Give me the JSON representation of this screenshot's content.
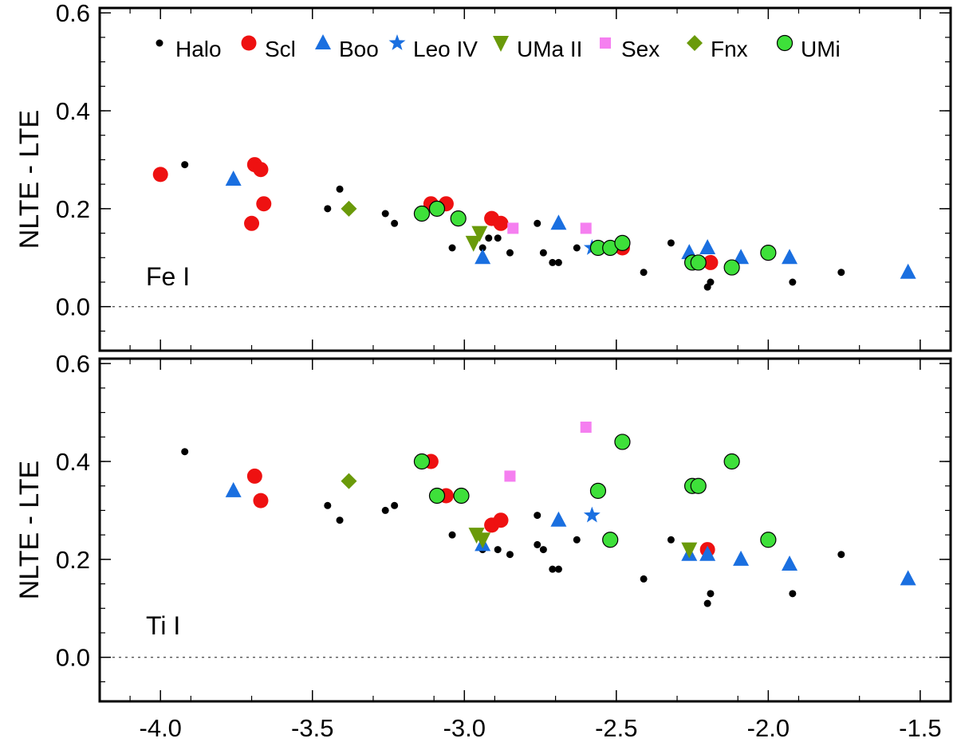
{
  "chart_data": [
    {
      "type": "scatter",
      "panel_label": "Fe I",
      "ylabel": "NLTE - LTE",
      "xlim": [
        -4.2,
        -1.4
      ],
      "ylim": [
        -0.09,
        0.61
      ],
      "yticks": [
        "0.0",
        "0.2",
        "0.4",
        "0.6"
      ],
      "reference_line": 0,
      "legend": [
        {
          "name": "Halo",
          "marker": "dot",
          "color": "#000000"
        },
        {
          "name": "Scl",
          "marker": "circle",
          "color": "#ee1111"
        },
        {
          "name": "Boo",
          "marker": "triangle",
          "color": "#1a6fe0"
        },
        {
          "name": "Leo IV",
          "marker": "star",
          "color": "#1a6fe0"
        },
        {
          "name": "UMa II",
          "marker": "triangle-down",
          "color": "#6a9a0a"
        },
        {
          "name": "Sex",
          "marker": "square",
          "color": "#f57ff0"
        },
        {
          "name": "Fnx",
          "marker": "diamond",
          "color": "#6a9a0a"
        },
        {
          "name": "UMi",
          "marker": "circle-outline",
          "color": "#3ee03a"
        }
      ],
      "series": [
        {
          "name": "Halo",
          "points": [
            [
              -3.92,
              0.29
            ],
            [
              -3.41,
              0.24
            ],
            [
              -3.45,
              0.2
            ],
            [
              -3.26,
              0.19
            ],
            [
              -3.23,
              0.17
            ],
            [
              -3.04,
              0.12
            ],
            [
              -2.94,
              0.12
            ],
            [
              -2.92,
              0.14
            ],
            [
              -2.89,
              0.14
            ],
            [
              -2.85,
              0.11
            ],
            [
              -2.76,
              0.17
            ],
            [
              -2.74,
              0.11
            ],
            [
              -2.71,
              0.09
            ],
            [
              -2.69,
              0.09
            ],
            [
              -2.63,
              0.12
            ],
            [
              -2.41,
              0.07
            ],
            [
              -2.32,
              0.13
            ],
            [
              -2.2,
              0.04
            ],
            [
              -2.19,
              0.05
            ],
            [
              -1.92,
              0.05
            ],
            [
              -1.76,
              0.07
            ]
          ]
        },
        {
          "name": "Scl",
          "points": [
            [
              -4.0,
              0.27
            ],
            [
              -3.69,
              0.29
            ],
            [
              -3.67,
              0.28
            ],
            [
              -3.7,
              0.17
            ],
            [
              -3.66,
              0.21
            ],
            [
              -3.11,
              0.21
            ],
            [
              -3.06,
              0.21
            ],
            [
              -2.91,
              0.18
            ],
            [
              -2.88,
              0.17
            ],
            [
              -2.48,
              0.12
            ],
            [
              -2.19,
              0.09
            ]
          ]
        },
        {
          "name": "Boo",
          "points": [
            [
              -3.76,
              0.26
            ],
            [
              -2.94,
              0.1
            ],
            [
              -2.69,
              0.17
            ],
            [
              -2.26,
              0.11
            ],
            [
              -2.2,
              0.12
            ],
            [
              -2.09,
              0.1
            ],
            [
              -1.93,
              0.1
            ],
            [
              -1.54,
              0.07
            ]
          ]
        },
        {
          "name": "Leo IV",
          "points": [
            [
              -2.58,
              0.12
            ]
          ]
        },
        {
          "name": "UMa II",
          "points": [
            [
              -2.97,
              0.13
            ],
            [
              -2.95,
              0.15
            ]
          ]
        },
        {
          "name": "Sex",
          "points": [
            [
              -2.84,
              0.16
            ],
            [
              -2.6,
              0.16
            ]
          ]
        },
        {
          "name": "Fnx",
          "points": [
            [
              -3.38,
              0.2
            ]
          ]
        },
        {
          "name": "UMi",
          "points": [
            [
              -3.14,
              0.19
            ],
            [
              -3.09,
              0.2
            ],
            [
              -3.02,
              0.18
            ],
            [
              -2.56,
              0.12
            ],
            [
              -2.52,
              0.12
            ],
            [
              -2.48,
              0.13
            ],
            [
              -2.25,
              0.09
            ],
            [
              -2.23,
              0.09
            ],
            [
              -2.12,
              0.08
            ],
            [
              -2.0,
              0.11
            ]
          ]
        }
      ]
    },
    {
      "type": "scatter",
      "panel_label": "Ti I",
      "ylabel": "NLTE - LTE",
      "xlim": [
        -4.2,
        -1.4
      ],
      "ylim": [
        -0.09,
        0.61
      ],
      "xticks": [
        "-4.0",
        "-3.5",
        "-3.0",
        "-2.5",
        "-2.0",
        "-1.5"
      ],
      "yticks": [
        "0.0",
        "0.2",
        "0.4",
        "0.6"
      ],
      "reference_line": 0,
      "series": [
        {
          "name": "Halo",
          "points": [
            [
              -3.92,
              0.42
            ],
            [
              -3.45,
              0.31
            ],
            [
              -3.41,
              0.28
            ],
            [
              -3.26,
              0.3
            ],
            [
              -3.23,
              0.31
            ],
            [
              -3.04,
              0.25
            ],
            [
              -2.94,
              0.22
            ],
            [
              -2.89,
              0.22
            ],
            [
              -2.85,
              0.21
            ],
            [
              -2.76,
              0.29
            ],
            [
              -2.76,
              0.23
            ],
            [
              -2.74,
              0.22
            ],
            [
              -2.71,
              0.18
            ],
            [
              -2.69,
              0.18
            ],
            [
              -2.63,
              0.24
            ],
            [
              -2.41,
              0.16
            ],
            [
              -2.32,
              0.24
            ],
            [
              -2.2,
              0.11
            ],
            [
              -2.19,
              0.13
            ],
            [
              -1.92,
              0.13
            ],
            [
              -1.76,
              0.21
            ]
          ]
        },
        {
          "name": "Scl",
          "points": [
            [
              -3.69,
              0.37
            ],
            [
              -3.67,
              0.32
            ],
            [
              -3.11,
              0.4
            ],
            [
              -3.06,
              0.33
            ],
            [
              -2.91,
              0.27
            ],
            [
              -2.88,
              0.28
            ],
            [
              -2.2,
              0.22
            ]
          ]
        },
        {
          "name": "Boo",
          "points": [
            [
              -3.76,
              0.34
            ],
            [
              -2.94,
              0.23
            ],
            [
              -2.69,
              0.28
            ],
            [
              -2.26,
              0.21
            ],
            [
              -2.2,
              0.21
            ],
            [
              -2.09,
              0.2
            ],
            [
              -1.93,
              0.19
            ],
            [
              -1.54,
              0.16
            ]
          ]
        },
        {
          "name": "Leo IV",
          "points": [
            [
              -2.58,
              0.29
            ]
          ]
        },
        {
          "name": "UMa II",
          "points": [
            [
              -2.96,
              0.25
            ],
            [
              -2.94,
              0.24
            ],
            [
              -2.26,
              0.22
            ]
          ]
        },
        {
          "name": "Sex",
          "points": [
            [
              -2.85,
              0.37
            ],
            [
              -2.6,
              0.47
            ]
          ]
        },
        {
          "name": "Fnx",
          "points": [
            [
              -3.38,
              0.36
            ]
          ]
        },
        {
          "name": "UMi",
          "points": [
            [
              -3.14,
              0.4
            ],
            [
              -3.09,
              0.33
            ],
            [
              -3.01,
              0.33
            ],
            [
              -2.56,
              0.34
            ],
            [
              -2.52,
              0.24
            ],
            [
              -2.48,
              0.44
            ],
            [
              -2.25,
              0.35
            ],
            [
              -2.23,
              0.35
            ],
            [
              -2.12,
              0.4
            ],
            [
              -2.0,
              0.24
            ]
          ]
        }
      ]
    }
  ]
}
